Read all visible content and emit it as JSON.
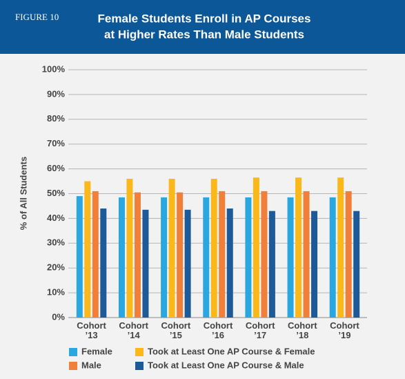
{
  "chart_data": {
    "type": "bar",
    "figure_label": "FIGURE 10",
    "title": "Female Students Enroll in AP Courses",
    "subtitle": "at Higher Rates Than Male Students",
    "y_label": "% of All Students",
    "categories": [
      "Cohort ’13",
      "Cohort ’14",
      "Cohort ’15",
      "Cohort ’16",
      "Cohort ’17",
      "Cohort ’18",
      "Cohort ’19"
    ],
    "series": [
      {
        "name": "Female",
        "color": "#2aa7e0",
        "values": [
          49,
          48.5,
          48.5,
          48.5,
          48.5,
          48.5,
          48.5
        ]
      },
      {
        "name": "Took at Least One AP Course & Female",
        "color": "#fbb81b",
        "values": [
          55,
          56,
          56,
          56,
          56.5,
          56.5,
          56.5
        ]
      },
      {
        "name": "Male",
        "color": "#f07f3a",
        "values": [
          51,
          50.5,
          50.5,
          51,
          51,
          51,
          51
        ]
      },
      {
        "name": "Took at Least One AP Course & Male",
        "color": "#1e5a98",
        "values": [
          44,
          43.5,
          43.5,
          44,
          43,
          43,
          43
        ]
      }
    ],
    "ylim": [
      0,
      100
    ],
    "yticks": [
      {
        "value": 0,
        "label": "0%"
      },
      {
        "value": 10,
        "label": "10%"
      },
      {
        "value": 20,
        "label": "20%"
      },
      {
        "value": 30,
        "label": "30%"
      },
      {
        "value": 40,
        "label": "40%"
      },
      {
        "value": 50,
        "label": "50%"
      },
      {
        "value": 60,
        "label": "60%"
      },
      {
        "value": 70,
        "label": "70%"
      },
      {
        "value": 80,
        "label": "80%"
      },
      {
        "value": 90,
        "label": "90%"
      },
      {
        "value": 100,
        "label": "100%"
      }
    ],
    "grid": true
  }
}
